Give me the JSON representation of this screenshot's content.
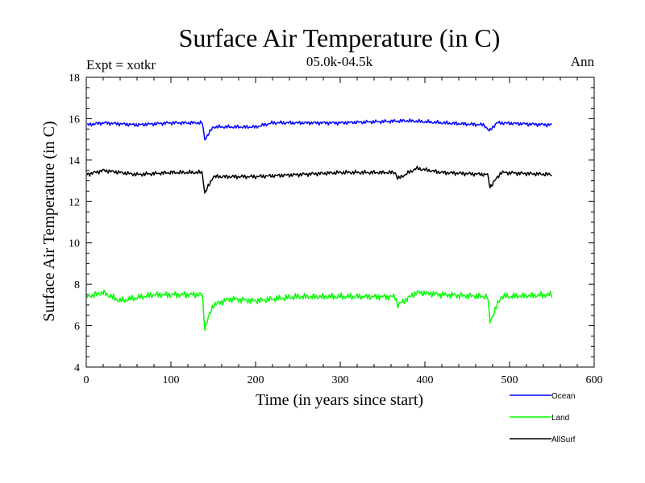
{
  "chart_data": {
    "type": "line",
    "title": "Surface Air Temperature (in C)",
    "subtitle_left": "Expt = xotkr",
    "subtitle_center": "05.0k-04.5k",
    "subtitle_right": "Ann",
    "xlabel": "Time (in years since start)",
    "ylabel": "Surface Air Temperature (in C)",
    "xlim": [
      0,
      600
    ],
    "ylim": [
      4,
      18
    ],
    "xticks": [
      0,
      100,
      200,
      300,
      400,
      500,
      600
    ],
    "yticks": [
      4,
      6,
      8,
      10,
      12,
      14,
      16,
      18
    ],
    "grid": false,
    "legend_position": "bottom-right, below plot",
    "series": [
      {
        "name": "Ocean",
        "color": "#0000ff",
        "x_range": [
          1,
          550
        ],
        "baseline": [
          [
            0,
            15.7
          ],
          [
            20,
            15.8
          ],
          [
            60,
            15.7
          ],
          [
            100,
            15.8
          ],
          [
            137,
            15.8
          ],
          [
            140,
            15.0
          ],
          [
            150,
            15.6
          ],
          [
            200,
            15.6
          ],
          [
            220,
            15.8
          ],
          [
            300,
            15.8
          ],
          [
            380,
            15.9
          ],
          [
            420,
            15.8
          ],
          [
            470,
            15.7
          ],
          [
            476,
            15.4
          ],
          [
            485,
            15.8
          ],
          [
            550,
            15.7
          ]
        ]
      },
      {
        "name": "Land",
        "color": "#00ff00",
        "x_range": [
          1,
          550
        ],
        "baseline": [
          [
            0,
            7.4
          ],
          [
            20,
            7.6
          ],
          [
            40,
            7.2
          ],
          [
            80,
            7.5
          ],
          [
            137,
            7.5
          ],
          [
            140,
            5.9
          ],
          [
            150,
            7.0
          ],
          [
            170,
            7.3
          ],
          [
            200,
            7.2
          ],
          [
            250,
            7.4
          ],
          [
            300,
            7.4
          ],
          [
            365,
            7.4
          ],
          [
            368,
            7.0
          ],
          [
            390,
            7.6
          ],
          [
            420,
            7.5
          ],
          [
            474,
            7.4
          ],
          [
            477,
            6.2
          ],
          [
            490,
            7.4
          ],
          [
            550,
            7.5
          ]
        ]
      },
      {
        "name": "AllSurf",
        "color": "#000000",
        "x_range": [
          1,
          550
        ],
        "baseline": [
          [
            0,
            13.3
          ],
          [
            20,
            13.5
          ],
          [
            60,
            13.3
          ],
          [
            100,
            13.4
          ],
          [
            137,
            13.4
          ],
          [
            140,
            12.4
          ],
          [
            150,
            13.2
          ],
          [
            200,
            13.2
          ],
          [
            300,
            13.4
          ],
          [
            365,
            13.4
          ],
          [
            368,
            13.1
          ],
          [
            390,
            13.6
          ],
          [
            420,
            13.4
          ],
          [
            474,
            13.3
          ],
          [
            477,
            12.7
          ],
          [
            490,
            13.4
          ],
          [
            550,
            13.3
          ]
        ]
      }
    ]
  }
}
